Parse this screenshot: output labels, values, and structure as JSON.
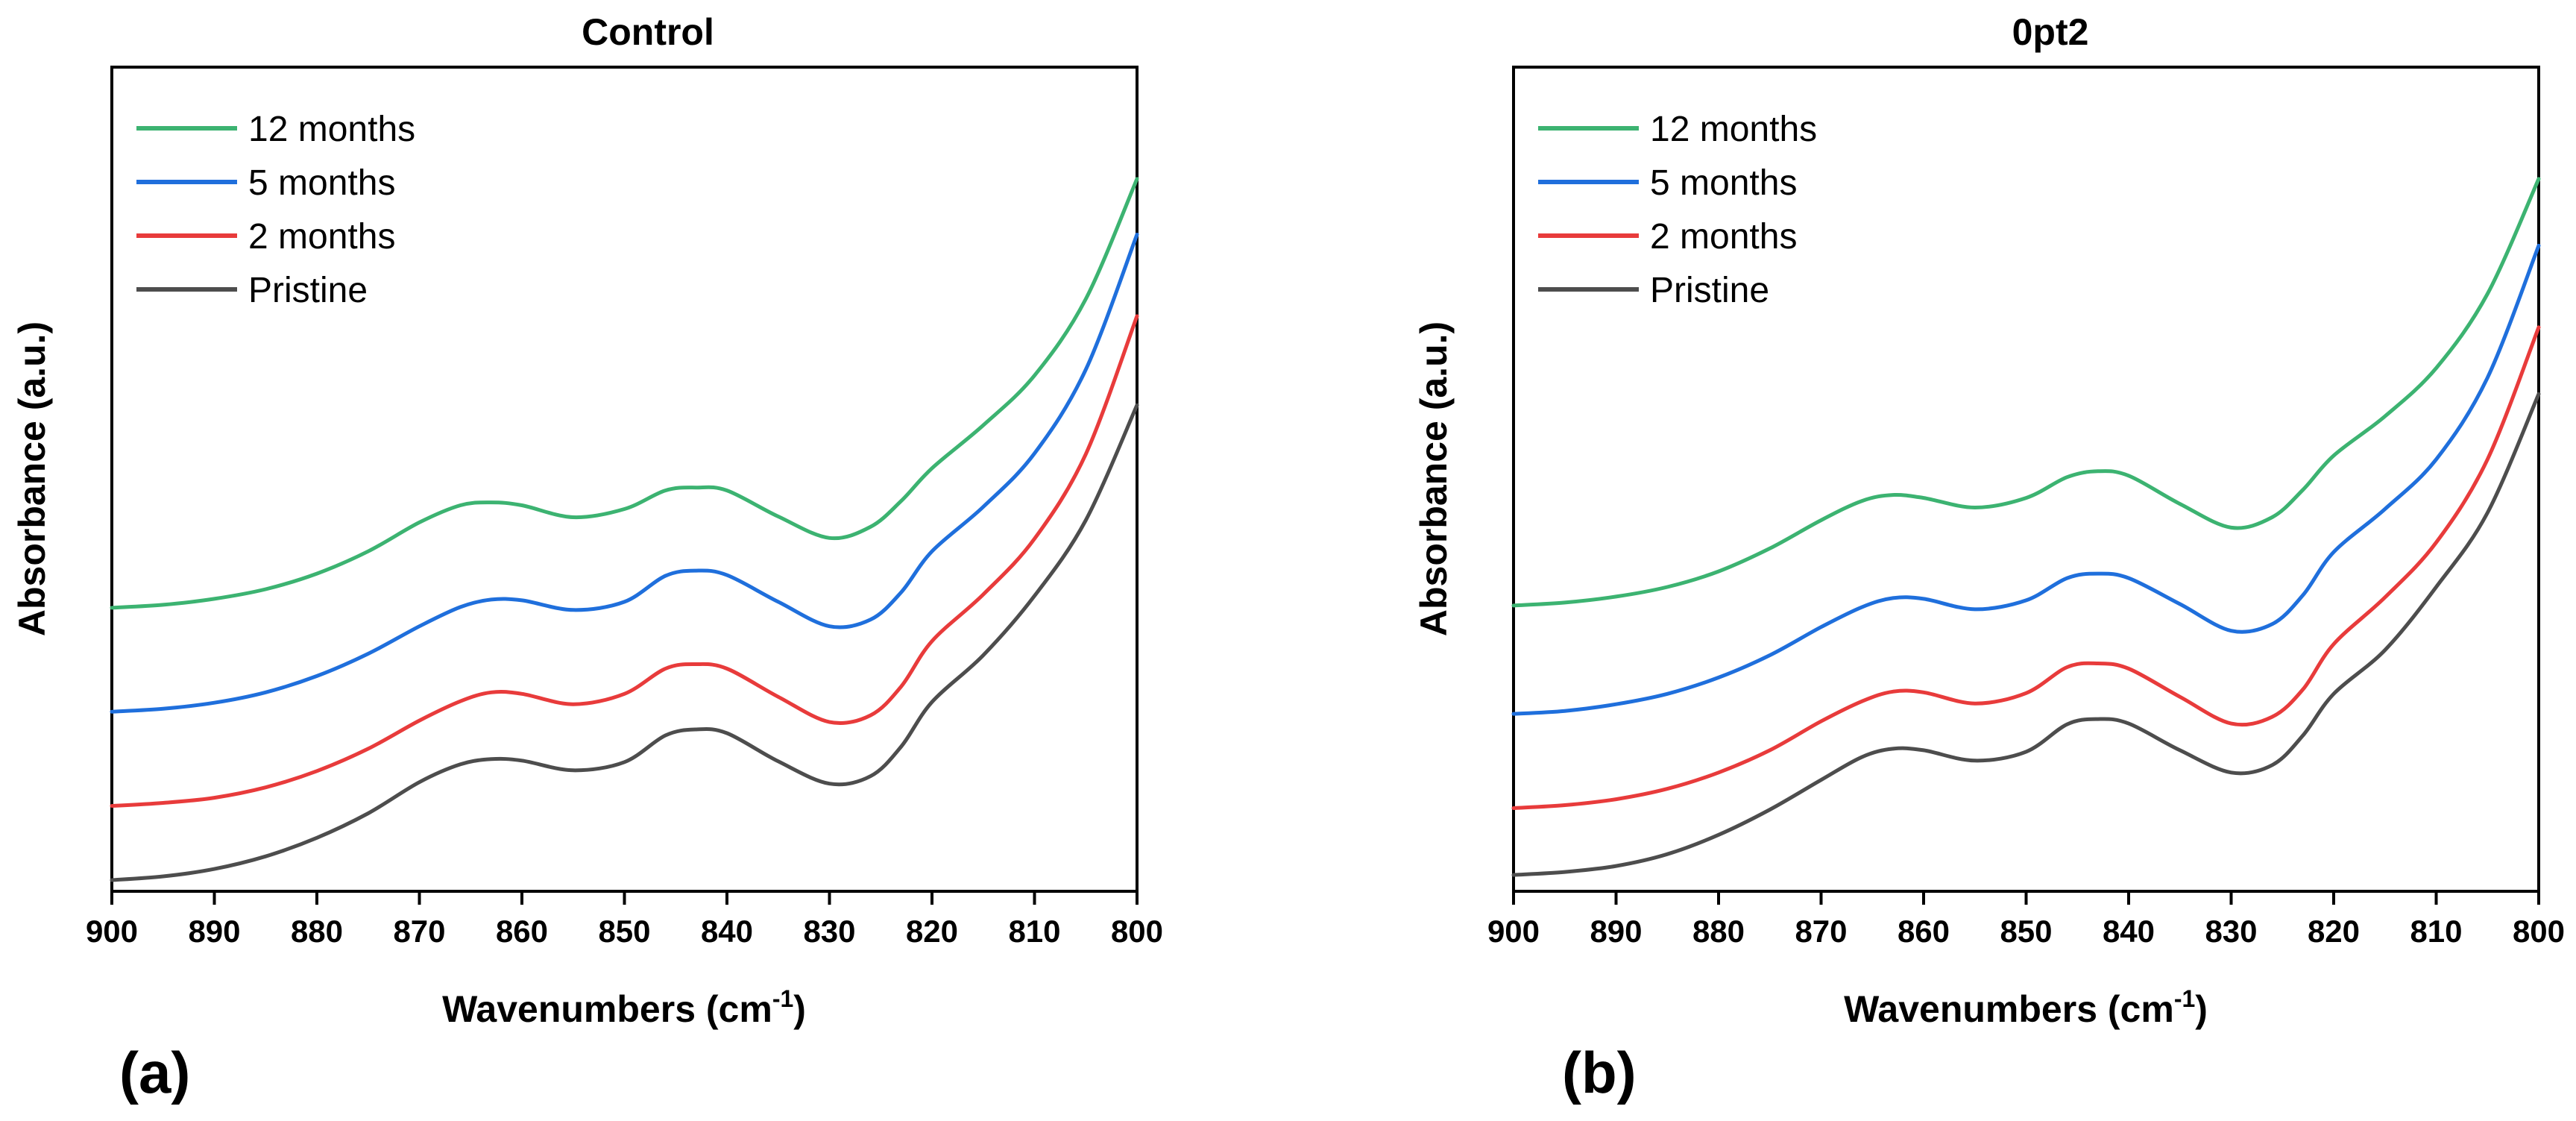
{
  "chart_data": [
    {
      "type": "line",
      "panel_label": "(a)",
      "title": "Control",
      "xlabel": "Wavenumbers (cm",
      "xlabel_sup": "-1",
      "xlabel_close": ")",
      "ylabel": "Absorbance (a.u.)",
      "xlim": [
        900,
        800
      ],
      "ylim": [
        0,
        1
      ],
      "xticks": [
        900,
        890,
        880,
        870,
        860,
        850,
        840,
        830,
        820,
        810,
        800
      ],
      "legend_position": "top-left",
      "x": [
        900,
        895,
        890,
        885,
        880,
        875,
        870,
        866,
        863,
        860,
        855,
        850,
        846,
        843,
        840,
        835,
        830,
        826,
        823,
        820,
        815,
        810,
        805,
        800
      ],
      "series": [
        {
          "name": "12 months",
          "color": "#3cb371",
          "values": [
            0.372,
            0.376,
            0.384,
            0.397,
            0.418,
            0.448,
            0.487,
            0.51,
            0.514,
            0.51,
            0.494,
            0.505,
            0.53,
            0.534,
            0.53,
            0.495,
            0.466,
            0.481,
            0.516,
            0.56,
            0.618,
            0.685,
            0.788,
            0.95
          ]
        },
        {
          "name": "5 months",
          "color": "#1f6fdc",
          "values": [
            0.232,
            0.236,
            0.244,
            0.258,
            0.28,
            0.31,
            0.347,
            0.373,
            0.383,
            0.382,
            0.369,
            0.38,
            0.415,
            0.422,
            0.416,
            0.38,
            0.347,
            0.356,
            0.393,
            0.448,
            0.508,
            0.58,
            0.693,
            0.875
          ]
        },
        {
          "name": "2 months",
          "color": "#e83b3b",
          "values": [
            0.105,
            0.109,
            0.116,
            0.13,
            0.152,
            0.182,
            0.22,
            0.246,
            0.258,
            0.256,
            0.242,
            0.256,
            0.29,
            0.296,
            0.29,
            0.252,
            0.218,
            0.227,
            0.266,
            0.327,
            0.39,
            0.465,
            0.579,
            0.765
          ]
        },
        {
          "name": "Pristine",
          "color": "#4d4d4d",
          "values": [
            0.005,
            0.01,
            0.02,
            0.037,
            0.062,
            0.095,
            0.137,
            0.161,
            0.168,
            0.166,
            0.153,
            0.164,
            0.2,
            0.208,
            0.203,
            0.165,
            0.135,
            0.145,
            0.185,
            0.245,
            0.308,
            0.388,
            0.49,
            0.645
          ]
        }
      ]
    },
    {
      "type": "line",
      "panel_label": "(b)",
      "title": "0pt2",
      "xlabel": "Wavenumbers (cm",
      "xlabel_sup": "-1",
      "xlabel_close": ")",
      "ylabel": "Absorbance (a.u.)",
      "xlim": [
        900,
        800
      ],
      "ylim": [
        0,
        1
      ],
      "xticks": [
        900,
        890,
        880,
        870,
        860,
        850,
        840,
        830,
        820,
        810,
        800
      ],
      "legend_position": "top-left",
      "x": [
        900,
        895,
        890,
        885,
        880,
        875,
        870,
        866,
        863,
        860,
        855,
        850,
        846,
        843,
        840,
        835,
        830,
        826,
        823,
        820,
        815,
        810,
        805,
        800
      ],
      "series": [
        {
          "name": "12 months",
          "color": "#3cb371",
          "values": [
            0.375,
            0.379,
            0.387,
            0.4,
            0.421,
            0.452,
            0.49,
            0.516,
            0.524,
            0.52,
            0.507,
            0.52,
            0.548,
            0.556,
            0.55,
            0.512,
            0.48,
            0.494,
            0.531,
            0.577,
            0.63,
            0.695,
            0.795,
            0.95
          ]
        },
        {
          "name": "5 months",
          "color": "#1f6fdc",
          "values": [
            0.229,
            0.233,
            0.242,
            0.256,
            0.278,
            0.308,
            0.346,
            0.373,
            0.385,
            0.384,
            0.37,
            0.382,
            0.412,
            0.418,
            0.412,
            0.377,
            0.341,
            0.35,
            0.389,
            0.447,
            0.505,
            0.572,
            0.682,
            0.86
          ]
        },
        {
          "name": "2 months",
          "color": "#e83b3b",
          "values": [
            0.102,
            0.106,
            0.114,
            0.128,
            0.15,
            0.18,
            0.219,
            0.246,
            0.259,
            0.258,
            0.243,
            0.257,
            0.292,
            0.297,
            0.29,
            0.252,
            0.216,
            0.225,
            0.262,
            0.323,
            0.386,
            0.46,
            0.572,
            0.75
          ]
        },
        {
          "name": "Pristine",
          "color": "#4d4d4d",
          "values": [
            0.012,
            0.016,
            0.024,
            0.04,
            0.066,
            0.1,
            0.14,
            0.171,
            0.182,
            0.18,
            0.166,
            0.178,
            0.215,
            0.222,
            0.216,
            0.18,
            0.15,
            0.16,
            0.2,
            0.256,
            0.315,
            0.4,
            0.5,
            0.66
          ]
        }
      ]
    }
  ]
}
